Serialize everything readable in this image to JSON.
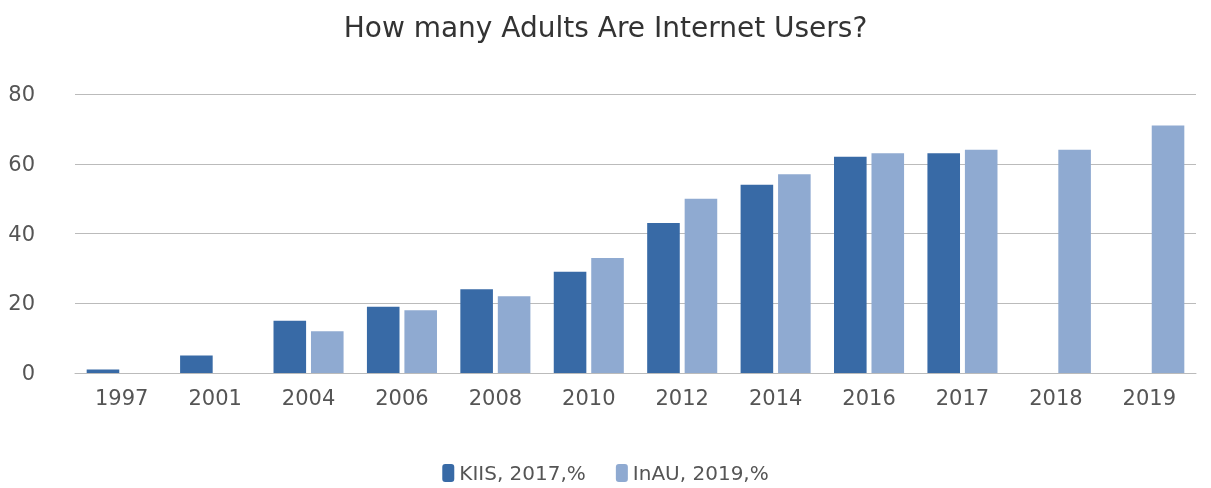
{
  "chart_data": {
    "type": "bar",
    "title": "How many Adults Are Internet Users?",
    "categories": [
      "1997",
      "2001",
      "2004",
      "2006",
      "2008",
      "2010",
      "2012",
      "2014",
      "2016",
      "2017",
      "2018",
      "2019"
    ],
    "series": [
      {
        "name": "KIIS, 2017,%",
        "color": "#386aa6",
        "values": [
          1,
          5,
          15,
          19,
          24,
          29,
          43,
          54,
          62,
          63,
          null,
          null
        ]
      },
      {
        "name": "InAU, 2019,%",
        "color": "#8faad1",
        "values": [
          null,
          null,
          12,
          18,
          22,
          33,
          50,
          57,
          63,
          64,
          64,
          71
        ]
      }
    ],
    "ylim": [
      0,
      80
    ],
    "yticks": [
      0,
      20,
      40,
      60,
      80
    ],
    "grid": "y",
    "legend": "bottom"
  }
}
